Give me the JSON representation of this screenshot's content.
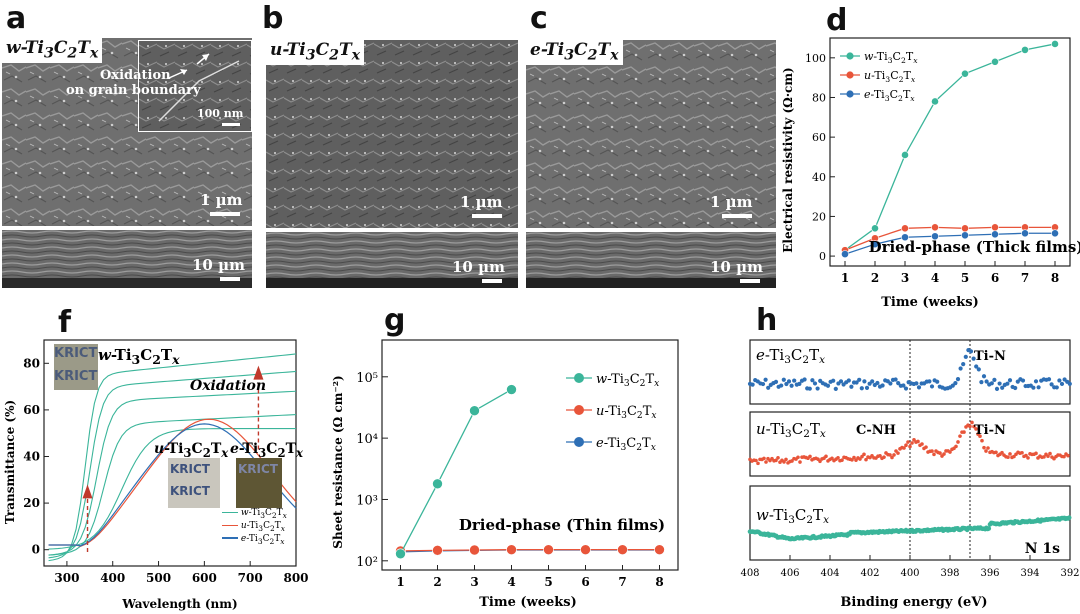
{
  "panels": {
    "a": {
      "label": "a",
      "sample": "w-Ti3C2Tx",
      "annotation": [
        "Oxidation",
        "on grain boundary"
      ],
      "inset_scale": "100 nm",
      "top_scale": "1 µm",
      "bottom_scale": "10 µm"
    },
    "b": {
      "label": "b",
      "sample": "u-Ti3C2Tx",
      "top_scale": "1 µm",
      "bottom_scale": "10 µm"
    },
    "c": {
      "label": "c",
      "sample": "e-Ti3C2Tx",
      "top_scale": "1 µm",
      "bottom_scale": "10 µm"
    },
    "d": {
      "label": "d"
    },
    "f": {
      "label": "f",
      "oxidation": "Oxidation",
      "photo_text": "KRICT"
    },
    "g": {
      "label": "g"
    },
    "h": {
      "label": "h"
    }
  },
  "colors": {
    "w": "#3bb59a",
    "u": "#e8553a",
    "e": "#2e6fb5"
  },
  "chart_data": [
    {
      "id": "d",
      "type": "line",
      "xlabel": "Time (weeks)",
      "ylabel": "Electrical resistivity (Ω·cm)",
      "annotation": "Dried-phase (Thick films)",
      "xlim": [
        0.5,
        8.5
      ],
      "ylim": [
        -5,
        110
      ],
      "xticks": [
        1,
        2,
        3,
        4,
        5,
        6,
        7,
        8
      ],
      "yticks": [
        0,
        20,
        40,
        60,
        80,
        100
      ],
      "legend": "top-left",
      "x": [
        1,
        2,
        3,
        4,
        5,
        6,
        7,
        8
      ],
      "series": [
        {
          "name": "w-Ti3C2Tx",
          "color": "#3bb59a",
          "values": [
            3,
            14,
            51,
            78,
            92,
            98,
            104,
            107
          ]
        },
        {
          "name": "u-Ti3C2Tx",
          "color": "#e8553a",
          "values": [
            3,
            9,
            14,
            14.5,
            14,
            14.5,
            14.5,
            14.5
          ]
        },
        {
          "name": "e-Ti3C2Tx",
          "color": "#2e6fb5",
          "values": [
            1,
            6,
            9.5,
            10,
            10.5,
            11,
            11.5,
            11.5
          ]
        }
      ]
    },
    {
      "id": "f",
      "type": "line",
      "xlabel": "Wavelength (nm)",
      "ylabel": "Transmittance (%)",
      "xlim": [
        250,
        800
      ],
      "ylim": [
        -7,
        90
      ],
      "xticks": [
        300,
        400,
        500,
        600,
        700,
        800
      ],
      "yticks": [
        0,
        20,
        40,
        60,
        80
      ],
      "legend": "bottom-right",
      "series": [
        {
          "name": "w-Ti3C2Tx",
          "color": "#3bb59a"
        },
        {
          "name": "u-Ti3C2Tx",
          "color": "#e8553a"
        },
        {
          "name": "e-Ti3C2Tx",
          "color": "#2e6fb5"
        }
      ]
    },
    {
      "id": "g",
      "type": "line",
      "xlabel": "Time (weeks)",
      "ylabel": "Sheet resistance (Ω cm⁻²)",
      "annotation": "Dried-phase (Thin films)",
      "xlim": [
        0.5,
        8.5
      ],
      "yscale": "log",
      "ylim_log": [
        1.85,
        5.6
      ],
      "xticks": [
        1,
        2,
        3,
        4,
        5,
        6,
        7,
        8
      ],
      "yticks": [
        "10²",
        "10³",
        "10⁴",
        "10⁵"
      ],
      "legend": "top-right",
      "series": [
        {
          "name": "w-Ti3C2Tx",
          "color": "#3bb59a",
          "x": [
            1,
            2,
            3,
            4
          ],
          "values": [
            130,
            1800,
            28000,
            62000
          ]
        },
        {
          "name": "u-Ti3C2Tx",
          "color": "#e8553a",
          "x": [
            1,
            2,
            3,
            4,
            5,
            6,
            7,
            8
          ],
          "values": [
            145,
            148,
            150,
            152,
            152,
            152,
            152,
            152
          ]
        },
        {
          "name": "e-Ti3C2Tx",
          "color": "#2e6fb5",
          "x": [
            1,
            2,
            3,
            4,
            5,
            6,
            7,
            8
          ],
          "values": [
            140,
            145,
            148,
            150,
            150,
            150,
            150,
            150
          ]
        }
      ]
    },
    {
      "id": "h",
      "type": "scatter",
      "xlabel": "Binding energy (eV)",
      "xlim": [
        408,
        392
      ],
      "xticks": [
        408,
        406,
        404,
        402,
        400,
        398,
        396,
        394,
        392
      ],
      "vlines": [
        400,
        397
      ],
      "tag": "N 1s",
      "rows": [
        {
          "name": "e-Ti3C2Tx",
          "color": "#2e6fb5",
          "peaks": [
            "Ti-N"
          ]
        },
        {
          "name": "u-Ti3C2Tx",
          "color": "#e8553a",
          "peaks": [
            "C-NH",
            "Ti-N"
          ]
        },
        {
          "name": "w-Ti3C2Tx",
          "color": "#3bb59a",
          "peaks": []
        }
      ]
    }
  ]
}
